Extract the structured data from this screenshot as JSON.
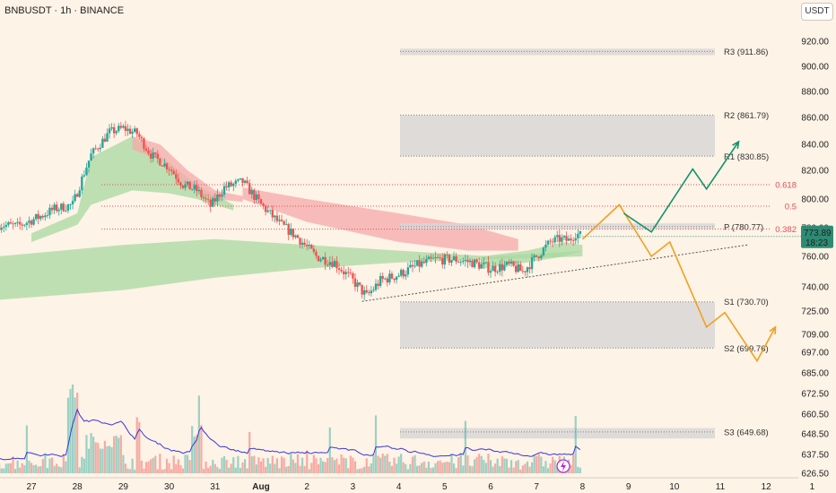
{
  "title": "BNBUSDT · 1h · BINANCE",
  "unit_button": "USDT",
  "price_badge": {
    "price": "773.89",
    "countdown": "18:23",
    "color": "#2e8b73"
  },
  "colors": {
    "bull": "#26a69a",
    "bear": "#ef5350",
    "green_band": "#a8d8a0",
    "red_band": "#f4a9a9",
    "zone": "#d9d6d6",
    "fib": "#e0505a",
    "bull_path": "#13926e",
    "bear_path": "#f0a020",
    "volume_ma": "#3a36d8"
  },
  "chart_data": {
    "type": "candlestick",
    "symbol": "BNBUSDT",
    "interval": "1h",
    "exchange": "BINANCE",
    "y_ticks": [
      920.0,
      900.0,
      880.0,
      860.0,
      840.0,
      820.0,
      800.0,
      780.0,
      760.0,
      740.0,
      725.0,
      709.0,
      697.0,
      685.0,
      672.5,
      660.5,
      648.5,
      637.5,
      626.5
    ],
    "y_tick_labels": [
      "920.00",
      "900.00",
      "880.00",
      "860.00",
      "840.00",
      "820.00",
      "800.00",
      "780.00",
      "760.00",
      "740.00",
      "725.00",
      "709.00",
      "697.00",
      "685.00",
      "672.50",
      "660.50",
      "648.50",
      "637.50",
      "626.50"
    ],
    "x_ticks": [
      {
        "label": "27",
        "day": 0
      },
      {
        "label": "28",
        "day": 1
      },
      {
        "label": "29",
        "day": 2
      },
      {
        "label": "30",
        "day": 3
      },
      {
        "label": "31",
        "day": 4
      },
      {
        "label": "Aug",
        "day": 5
      },
      {
        "label": "2",
        "day": 6
      },
      {
        "label": "3",
        "day": 7
      },
      {
        "label": "4",
        "day": 8
      },
      {
        "label": "5",
        "day": 9
      },
      {
        "label": "6",
        "day": 10
      },
      {
        "label": "7",
        "day": 11
      },
      {
        "label": "8",
        "day": 12
      },
      {
        "label": "9",
        "day": 13
      },
      {
        "label": "10",
        "day": 14
      },
      {
        "label": "11",
        "day": 15
      },
      {
        "label": "12",
        "day": 16
      },
      {
        "label": "1",
        "day": 17
      }
    ],
    "price_path": [
      [
        -0.7,
        782
      ],
      [
        -0.3,
        781
      ],
      [
        0.2,
        788
      ],
      [
        0.5,
        793
      ],
      [
        0.9,
        796
      ],
      [
        1.3,
        832
      ],
      [
        1.7,
        849
      ],
      [
        2.0,
        852
      ],
      [
        2.3,
        848
      ],
      [
        2.6,
        832
      ],
      [
        3.0,
        822
      ],
      [
        3.3,
        810
      ],
      [
        3.6,
        806
      ],
      [
        3.9,
        795
      ],
      [
        4.2,
        808
      ],
      [
        4.6,
        812
      ],
      [
        5.0,
        796
      ],
      [
        5.4,
        783
      ],
      [
        5.8,
        773
      ],
      [
        6.2,
        760
      ],
      [
        6.6,
        756
      ],
      [
        7.0,
        744
      ],
      [
        7.3,
        734
      ],
      [
        7.6,
        744
      ],
      [
        8.0,
        748
      ],
      [
        8.4,
        754
      ],
      [
        8.8,
        758
      ],
      [
        9.2,
        758
      ],
      [
        9.6,
        756
      ],
      [
        10.0,
        752
      ],
      [
        10.4,
        754
      ],
      [
        10.7,
        750
      ],
      [
        11.0,
        760
      ],
      [
        11.3,
        770
      ],
      [
        11.5,
        772
      ],
      [
        11.7,
        771
      ],
      [
        11.85,
        776
      ],
      [
        12.0,
        774
      ]
    ],
    "volume_scale": [
      0,
      100
    ],
    "levels": [
      {
        "name": "R3",
        "label": "R3 (911.86)",
        "value": 911.86,
        "zone": [
          909,
          914
        ]
      },
      {
        "name": "R2",
        "label": "R2 (861.79)",
        "value": 861.79,
        "zone": [
          830.85,
          861.79
        ]
      },
      {
        "name": "R1",
        "label": "R1 (830.85)",
        "value": 830.85
      },
      {
        "name": "P",
        "label": "P (780.77)",
        "value": 780.77,
        "zone": [
          779,
          783
        ]
      },
      {
        "name": "S1",
        "label": "S1 (730.70)",
        "value": 730.7,
        "zone": [
          699.76,
          730.7
        ]
      },
      {
        "name": "S2",
        "label": "S2 (699.76)",
        "value": 699.76
      },
      {
        "name": "S3",
        "label": "S3 (649.68)",
        "value": 649.68,
        "zone": [
          646,
          652
        ]
      }
    ],
    "fib_levels": [
      {
        "label": "0.618",
        "value": 810
      },
      {
        "label": "0.5",
        "value": 795
      },
      {
        "label": "0.382",
        "value": 779
      }
    ],
    "last_price": 773.89,
    "trendline": [
      [
        7.2,
        731
      ],
      [
        15.6,
        768
      ]
    ],
    "scenario_bull": [
      [
        12.9,
        790
      ],
      [
        13.5,
        777
      ],
      [
        14.4,
        821
      ],
      [
        14.7,
        807
      ],
      [
        15.4,
        842
      ]
    ],
    "scenario_bear": [
      [
        12.0,
        772
      ],
      [
        12.8,
        796
      ],
      [
        13.5,
        760
      ],
      [
        13.9,
        770
      ],
      [
        14.7,
        714
      ],
      [
        15.1,
        724
      ],
      [
        15.8,
        692
      ],
      [
        16.2,
        714
      ]
    ]
  }
}
